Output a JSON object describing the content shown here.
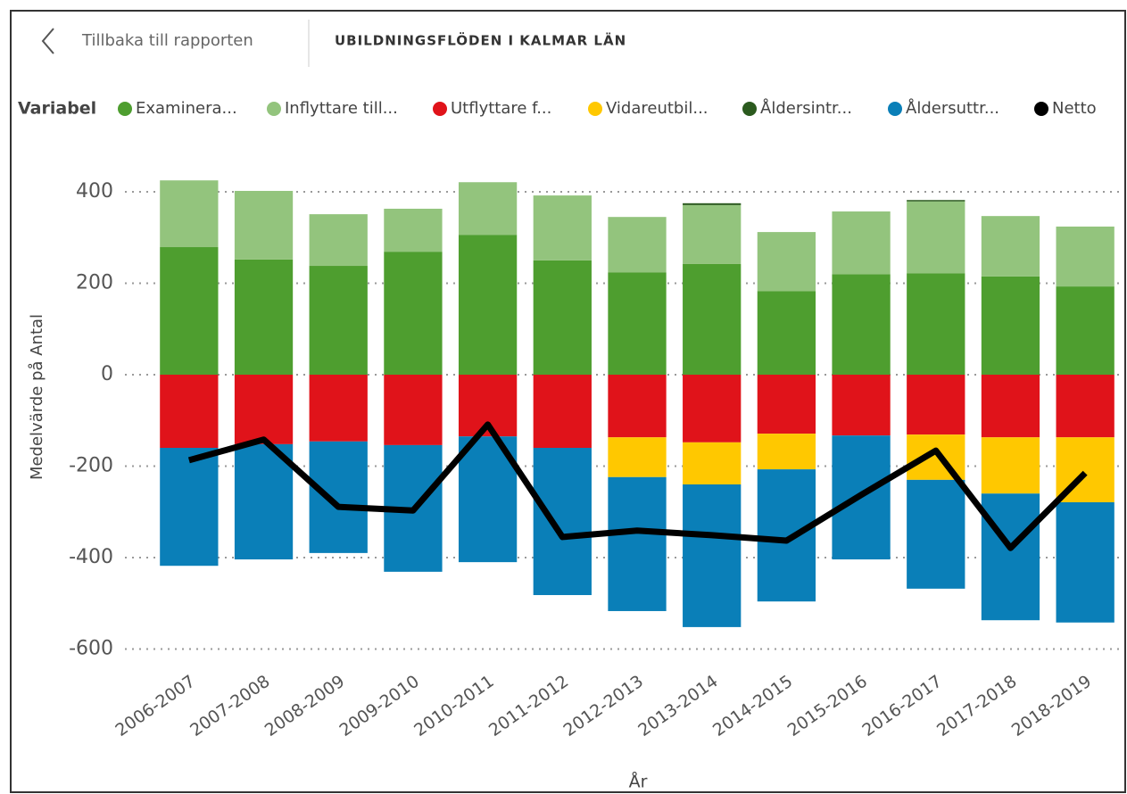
{
  "header": {
    "back": "Tillbaka till rapporten",
    "title": "UBILDNINGSFLÖDEN I KALMAR LÄN"
  },
  "chart_data": {
    "type": "bar",
    "stacked": true,
    "legend_title": "Variabel",
    "legend_labels": [
      "Examinera...",
      "Inflyttare till...",
      "Utflyttare f...",
      "Vidareutbil...",
      "Åldersintr...",
      "Åldersuttr...",
      "Netto"
    ],
    "ylabel": "Medelvärde på Antal",
    "xlabel": "År",
    "categories": [
      "2006-2007",
      "2007-2008",
      "2008-2009",
      "2009-2010",
      "2010-2011",
      "2011-2012",
      "2012-2013",
      "2013-2014",
      "2014-2015",
      "2015-2016",
      "2016-2017",
      "2017-2018",
      "2018-2019"
    ],
    "ylim": [
      -600,
      450
    ],
    "yticks": [
      -600,
      -400,
      -200,
      0,
      200,
      400
    ],
    "grid": true,
    "series": [
      {
        "name": "Examinerade",
        "color": "#4e9e2f",
        "values": [
          279,
          252,
          238,
          269,
          306,
          250,
          224,
          242,
          183,
          220,
          222,
          215,
          193
        ]
      },
      {
        "name": "Inflyttare till länet",
        "color": "#93c47d",
        "values": [
          146,
          150,
          113,
          94,
          115,
          142,
          121,
          129,
          129,
          137,
          157,
          132,
          131
        ]
      },
      {
        "name": "Utflyttare från länet",
        "color": "#e0131a",
        "values": [
          -160,
          -152,
          -146,
          -154,
          -135,
          -160,
          -137,
          -148,
          -129,
          -133,
          -131,
          -137,
          -137
        ]
      },
      {
        "name": "Vidareutbildning",
        "color": "#ffc800",
        "values": [
          null,
          null,
          null,
          null,
          null,
          null,
          -87,
          -92,
          -78,
          null,
          -99,
          -123,
          -142
        ]
      },
      {
        "name": "Åldersinträde",
        "color": "#2b5a1e",
        "values": [
          null,
          null,
          null,
          null,
          null,
          null,
          null,
          4,
          null,
          null,
          3,
          null,
          null
        ]
      },
      {
        "name": "Åldersutträde",
        "color": "#0a7fb8",
        "values": [
          -258,
          -252,
          -244,
          -277,
          -275,
          -322,
          -293,
          -312,
          -289,
          -271,
          -238,
          -277,
          -263
        ]
      },
      {
        "name": "Netto",
        "color": "#000000",
        "type": "line",
        "values": [
          -187,
          -142,
          -289,
          -297,
          -109,
          -355,
          -341,
          -351,
          -363,
          -263,
          -166,
          -379,
          -215
        ]
      }
    ]
  }
}
